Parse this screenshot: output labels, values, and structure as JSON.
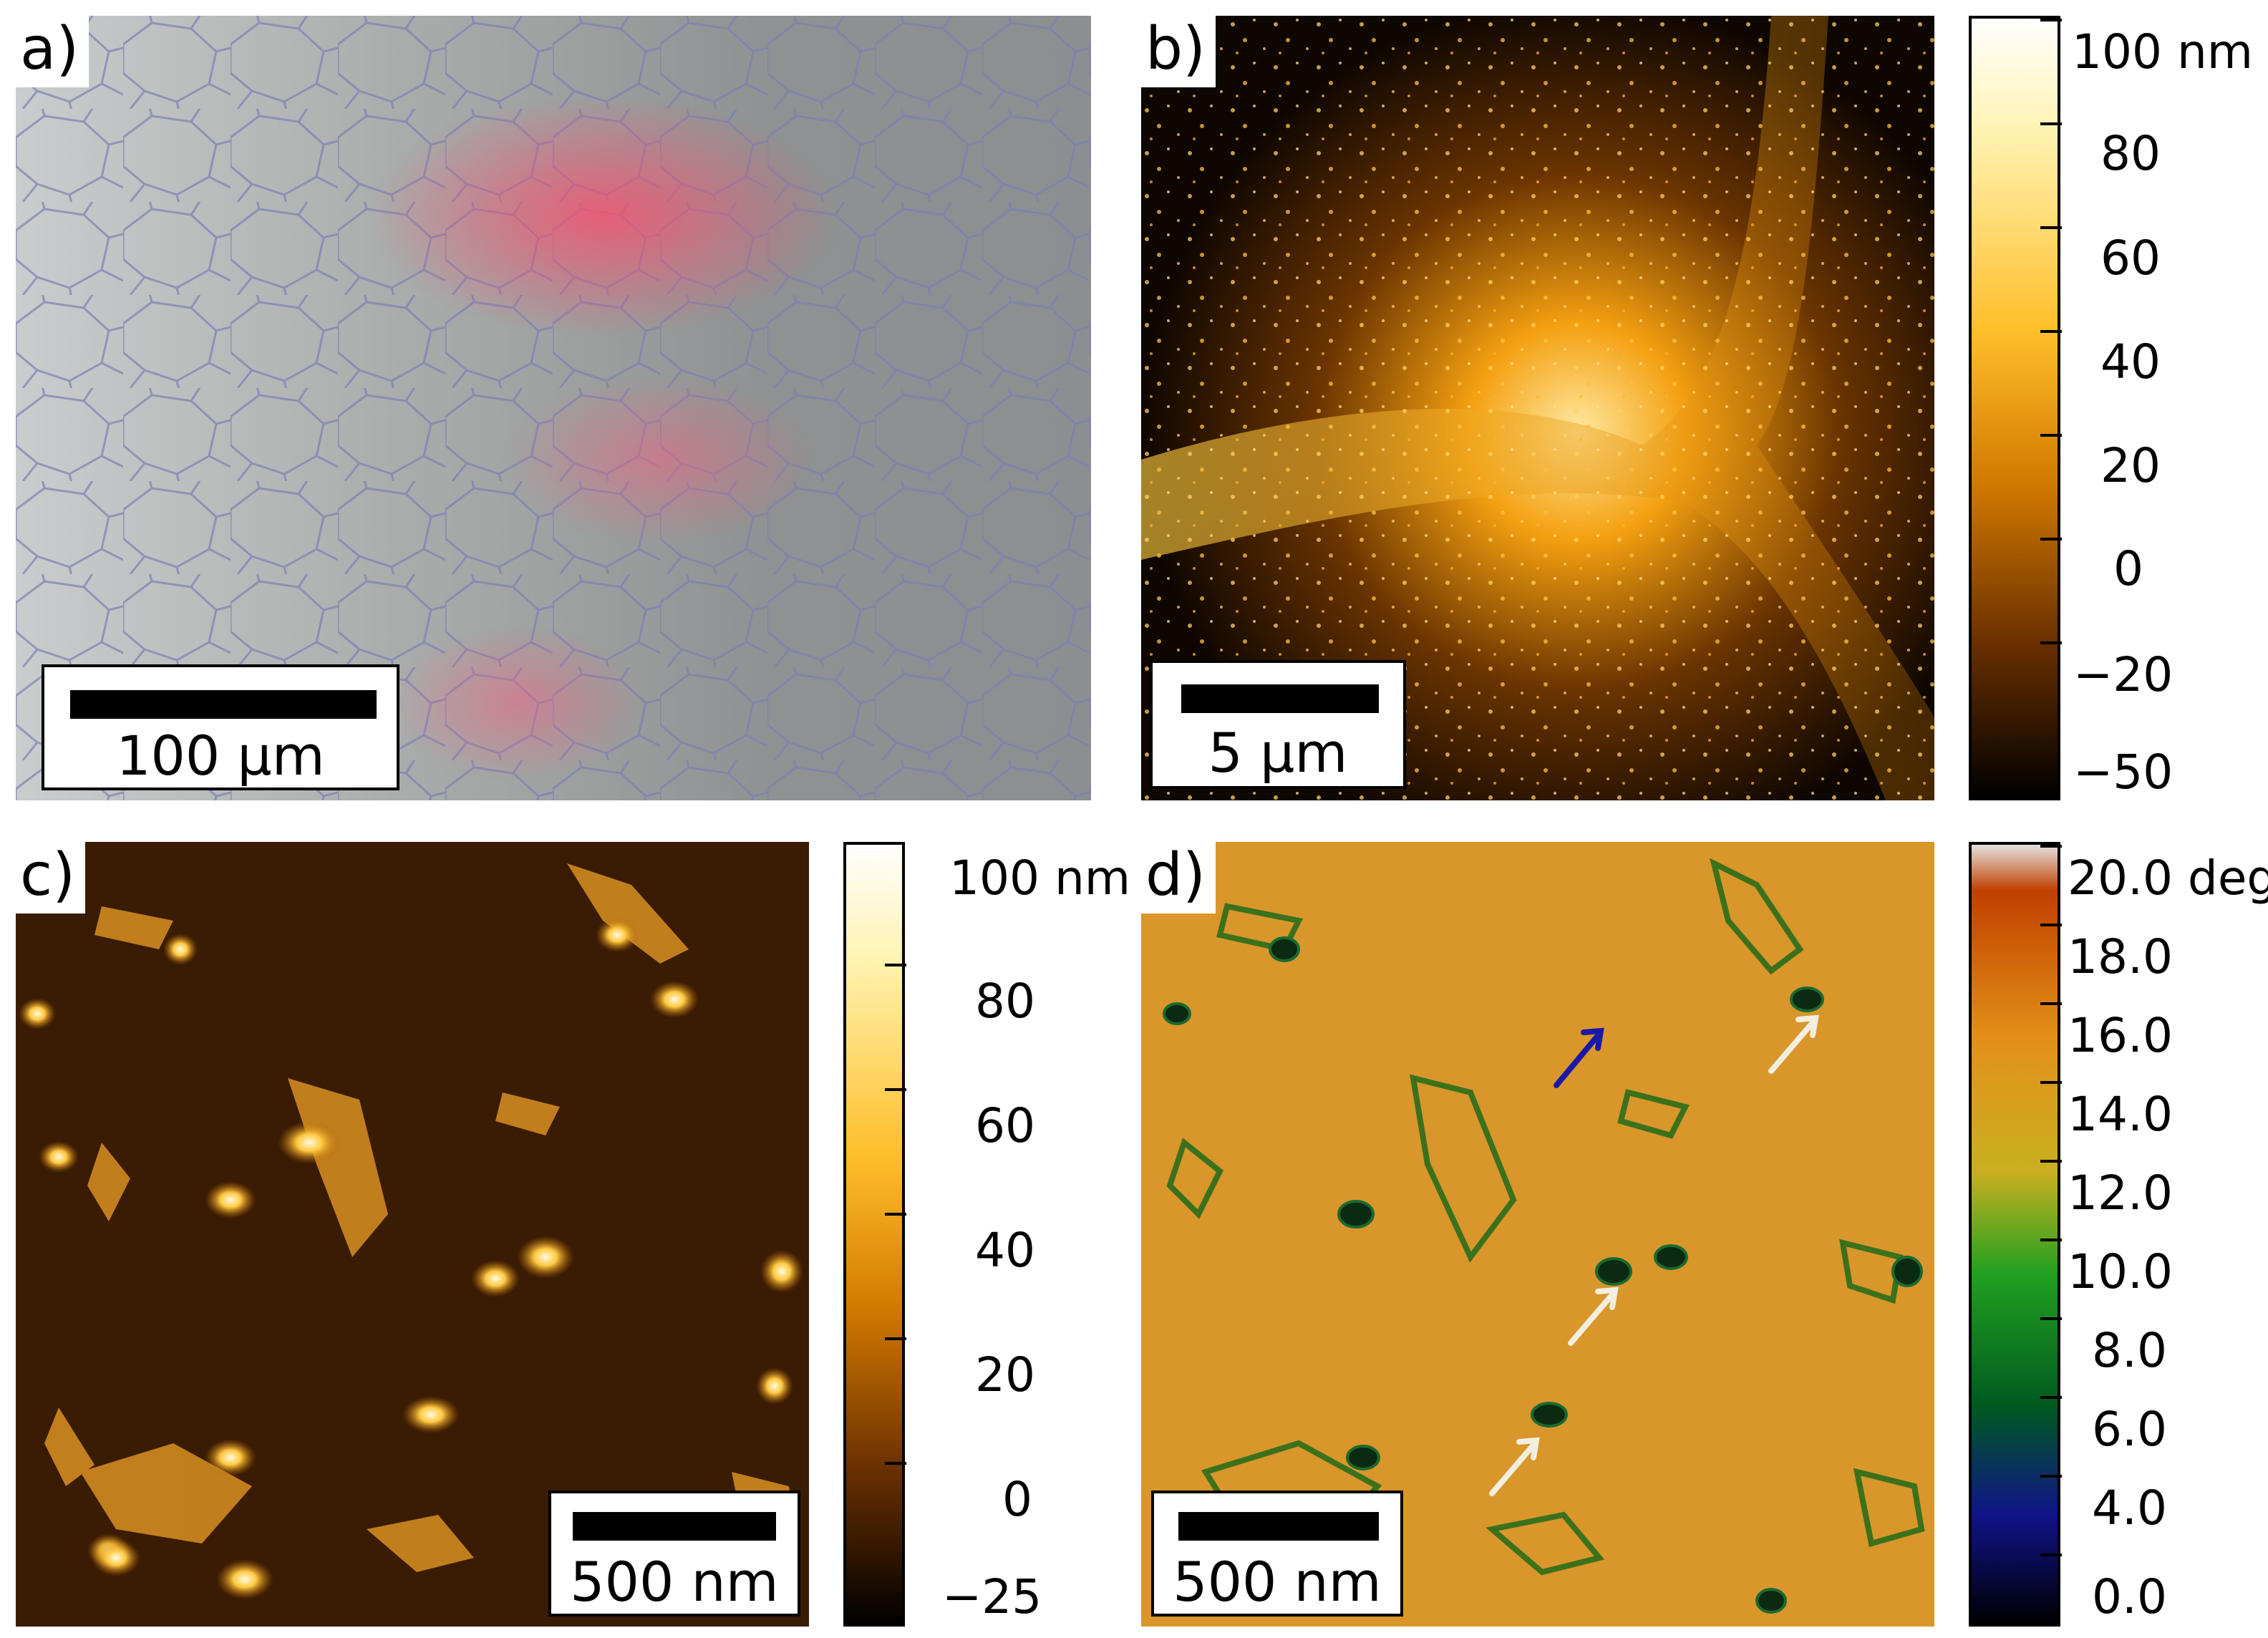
{
  "panels": {
    "a": {
      "label": "a)",
      "scale": "100 μm"
    },
    "b": {
      "label": "b)",
      "scale": "5 μm"
    },
    "c": {
      "label": "c)",
      "scale": "500 nm"
    },
    "d": {
      "label": "d)",
      "scale": "500 nm"
    }
  },
  "colorbars": {
    "b": {
      "ticks": [
        "100 nm",
        "80",
        "60",
        "40",
        "20",
        "0",
        "−20",
        "−50"
      ]
    },
    "c": {
      "ticks": [
        "100 nm",
        "80",
        "60",
        "40",
        "20",
        "0",
        "−25"
      ]
    },
    "d": {
      "ticks": [
        "20.0 deg",
        "18.0",
        "16.0",
        "14.0",
        "12.0",
        "10.0",
        "8.0",
        "6.0",
        "4.0",
        "0.0"
      ]
    }
  },
  "colors": {
    "afm_height": [
      "#ffffff",
      "#fff2b0",
      "#ffbf2a",
      "#d07800",
      "#6a3000",
      "#000000"
    ],
    "phase": [
      "#e6e6e6",
      "#c04000",
      "#e39018",
      "#c9b020",
      "#22a020",
      "#005a20",
      "#10138a",
      "#000000"
    ]
  }
}
